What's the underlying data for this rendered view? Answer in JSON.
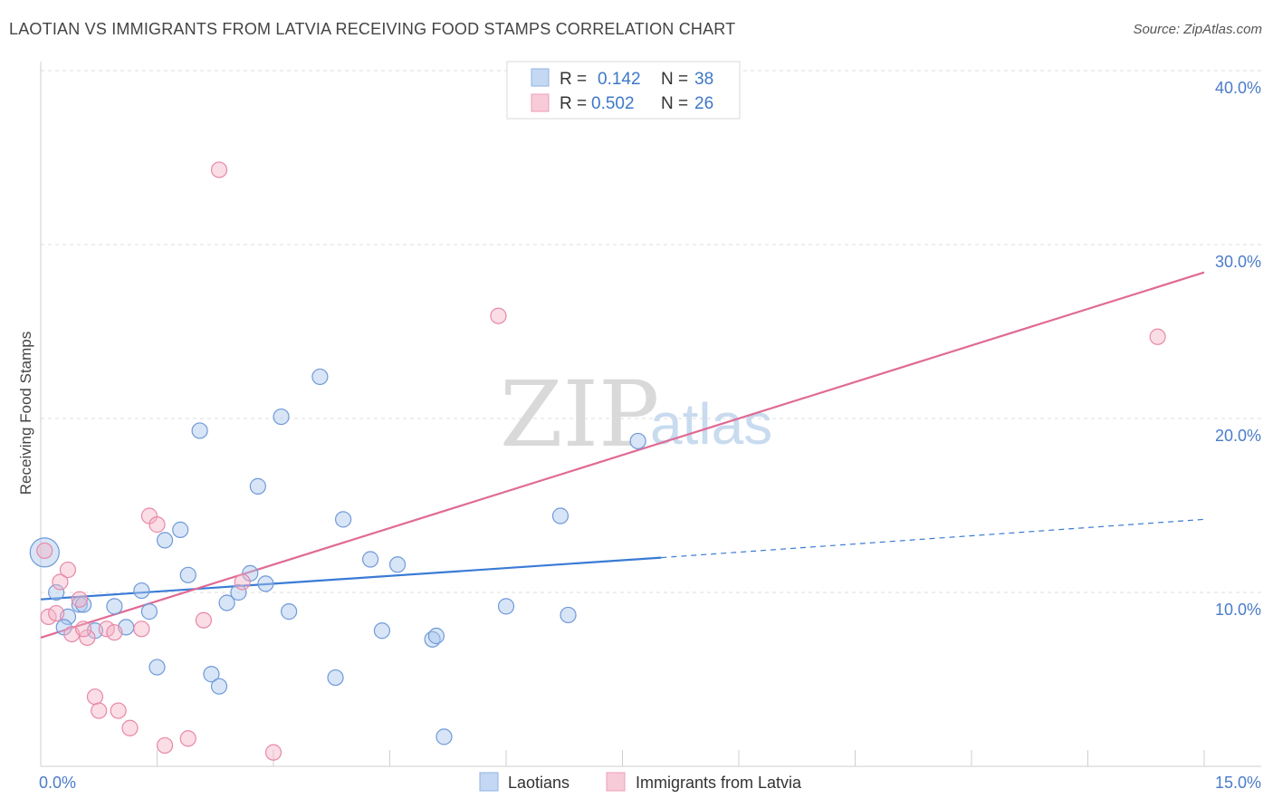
{
  "header": {
    "title": "LAOTIAN VS IMMIGRANTS FROM LATVIA RECEIVING FOOD STAMPS CORRELATION CHART",
    "source": "Source: ZipAtlas.com"
  },
  "watermark": {
    "zip": "ZIP",
    "atlas": "atlas"
  },
  "legend": {
    "rows": [
      {
        "r_label": "R =",
        "r_value": "0.142",
        "n_label": "N =",
        "n_value": "38",
        "color": "#a9c6ee"
      },
      {
        "r_label": "R =",
        "r_value": "0.502",
        "n_label": "N =",
        "n_value": "26",
        "color": "#f5b3c6"
      }
    ]
  },
  "bottom_legend": [
    {
      "label": "Laotians",
      "color": "#a9c6ee"
    },
    {
      "label": "Immigrants from Latvia",
      "color": "#f5b3c6"
    }
  ],
  "chart_data": {
    "type": "scatter",
    "title": "LAOTIAN VS IMMIGRANTS FROM LATVIA RECEIVING FOOD STAMPS CORRELATION CHART",
    "xlabel": "",
    "ylabel": "Receiving Food Stamps",
    "xlim": [
      0,
      15
    ],
    "ylim": [
      0,
      40
    ],
    "x_tick_labels": {
      "min": "0.0%",
      "max": "15.0%"
    },
    "y_ticks": [
      {
        "value": 10,
        "label": "10.0%"
      },
      {
        "value": 20,
        "label": "20.0%"
      },
      {
        "value": 30,
        "label": "30.0%"
      },
      {
        "value": 40,
        "label": "40.0%"
      }
    ],
    "series": [
      {
        "name": "Laotians",
        "color": "#3a7bd5",
        "fill": "#a9c6ee",
        "r": 0.142,
        "n": 38,
        "points": [
          [
            0.05,
            12.3,
            "big"
          ],
          [
            0.2,
            10.0
          ],
          [
            0.35,
            8.6
          ],
          [
            0.5,
            9.3
          ],
          [
            0.3,
            8.0
          ],
          [
            0.7,
            7.8
          ],
          [
            0.95,
            9.2
          ],
          [
            1.1,
            8.0
          ],
          [
            1.3,
            10.1
          ],
          [
            1.4,
            8.9
          ],
          [
            1.5,
            5.7
          ],
          [
            1.6,
            13.0
          ],
          [
            1.8,
            13.6
          ],
          [
            1.9,
            11.0
          ],
          [
            2.05,
            19.3
          ],
          [
            2.2,
            5.3
          ],
          [
            2.3,
            4.6
          ],
          [
            2.4,
            9.4
          ],
          [
            2.55,
            10.0
          ],
          [
            2.7,
            11.1
          ],
          [
            2.8,
            16.1
          ],
          [
            2.9,
            10.5
          ],
          [
            3.1,
            20.1
          ],
          [
            3.2,
            8.9
          ],
          [
            3.6,
            22.4
          ],
          [
            3.8,
            5.1
          ],
          [
            3.9,
            14.2
          ],
          [
            4.25,
            11.9
          ],
          [
            4.4,
            7.8
          ],
          [
            4.6,
            11.6
          ],
          [
            5.05,
            7.3
          ],
          [
            5.1,
            7.5
          ],
          [
            5.2,
            1.7
          ],
          [
            6.0,
            9.2
          ],
          [
            6.7,
            14.4
          ],
          [
            6.8,
            8.7
          ],
          [
            7.7,
            18.7
          ],
          [
            0.55,
            9.3
          ]
        ],
        "trend": {
          "x0": 0,
          "y0": 9.6,
          "x1": 8.0,
          "y1": 12.0,
          "dash_x1": 15.0,
          "dash_y1": 14.2
        }
      },
      {
        "name": "Immigrants from Latvia",
        "color": "#e06a95",
        "fill": "#f5b3c6",
        "r": 0.502,
        "n": 26,
        "points": [
          [
            0.05,
            12.4
          ],
          [
            0.1,
            8.6
          ],
          [
            0.2,
            8.8
          ],
          [
            0.25,
            10.6
          ],
          [
            0.35,
            11.3
          ],
          [
            0.4,
            7.6
          ],
          [
            0.5,
            9.6
          ],
          [
            0.6,
            7.4
          ],
          [
            0.7,
            4.0
          ],
          [
            0.75,
            3.2
          ],
          [
            0.85,
            7.9
          ],
          [
            0.95,
            7.7
          ],
          [
            1.0,
            3.2
          ],
          [
            1.15,
            2.2
          ],
          [
            1.3,
            7.9
          ],
          [
            1.4,
            14.4
          ],
          [
            1.5,
            13.9
          ],
          [
            1.6,
            1.2
          ],
          [
            1.9,
            1.6
          ],
          [
            2.1,
            8.4
          ],
          [
            2.3,
            34.3
          ],
          [
            2.6,
            10.6
          ],
          [
            3.0,
            0.8
          ],
          [
            5.9,
            25.9
          ],
          [
            14.4,
            24.7
          ],
          [
            0.55,
            7.9
          ]
        ],
        "trend": {
          "x0": 0,
          "y0": 7.4,
          "x1": 15.0,
          "y1": 28.4
        }
      }
    ]
  }
}
